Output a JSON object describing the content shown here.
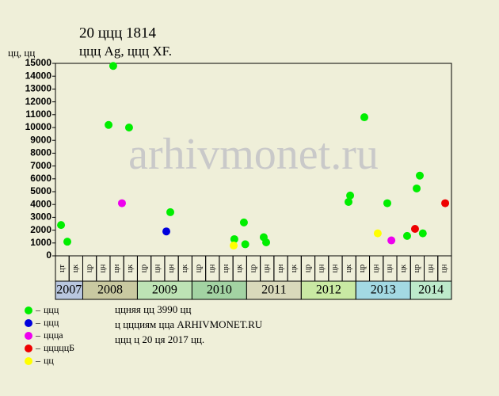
{
  "chart_data": {
    "type": "scatter",
    "title": "20 ццц 1814",
    "subtitle": "ццц Ag, ццц XF.",
    "y_label": "цц, цц",
    "watermark": "arhivmonet.ru",
    "xlim": [
      0,
      29
    ],
    "ylim": [
      0,
      15000
    ],
    "yticks": [
      0,
      1000,
      2000,
      3000,
      4000,
      5000,
      6000,
      7000,
      8000,
      9000,
      10000,
      11000,
      12000,
      13000,
      14000,
      15000
    ],
    "groups": [
      {
        "label": "2007",
        "color": "#b9c7df",
        "categories": [
          "цт",
          "цк"
        ]
      },
      {
        "label": "2008",
        "color": "#c9c9a1",
        "categories": [
          "цр",
          "цн",
          "цн",
          "цк"
        ]
      },
      {
        "label": "2009",
        "color": "#bde3b5",
        "categories": [
          "цр",
          "цн",
          "цн",
          "цк"
        ]
      },
      {
        "label": "2010",
        "color": "#a3d3a3",
        "categories": [
          "цр",
          "цн",
          "цн",
          "цк"
        ]
      },
      {
        "label": "2011",
        "color": "#d9d9bb",
        "categories": [
          "цр",
          "цн",
          "цн",
          "цк"
        ]
      },
      {
        "label": "2012",
        "color": "#c9e9a3",
        "categories": [
          "цр",
          "цн",
          "цн",
          "цк"
        ]
      },
      {
        "label": "2013",
        "color": "#a3d9e3",
        "categories": [
          "цр",
          "цн",
          "цн",
          "цк"
        ]
      },
      {
        "label": "2014",
        "color": "#bde9cb",
        "categories": [
          "цр",
          "цн",
          "цн"
        ]
      }
    ],
    "series": [
      {
        "name": "ццц",
        "color": "#00ee00",
        "x": [
          0.41,
          0.87,
          3.89,
          4.23,
          5.39,
          8.41,
          13.1,
          13.8,
          13.9,
          15.25,
          15.43,
          21.46,
          21.58,
          22.62,
          24.3,
          25.75,
          26.45,
          26.68,
          26.9
        ],
        "values": [
          2400,
          1100,
          10200,
          14800,
          10000,
          3400,
          1300,
          2600,
          900,
          1450,
          1050,
          4200,
          4700,
          10800,
          4100,
          1550,
          5250,
          6250,
          1750
        ]
      },
      {
        "name": "ццц",
        "color": "#0000dd",
        "x": [
          8.12
        ],
        "values": [
          1900
        ]
      },
      {
        "name": "ццца",
        "color": "#ee00ee",
        "x": [
          4.87,
          24.6
        ],
        "values": [
          4100,
          1200
        ]
      },
      {
        "name": "цццццБ",
        "color": "#ee0000",
        "x": [
          26.33,
          28.54
        ],
        "values": [
          2100,
          4100
        ]
      },
      {
        "name": "цц",
        "color": "#ffff00",
        "x": [
          13.05,
          23.6
        ],
        "values": [
          800,
          1750
        ]
      }
    ],
    "notes": [
      "ццняя цц 3990 цц",
      "ц ццциям цца ARHIVMONET.RU",
      "ццц ц 20 ця 2017 цц."
    ]
  }
}
